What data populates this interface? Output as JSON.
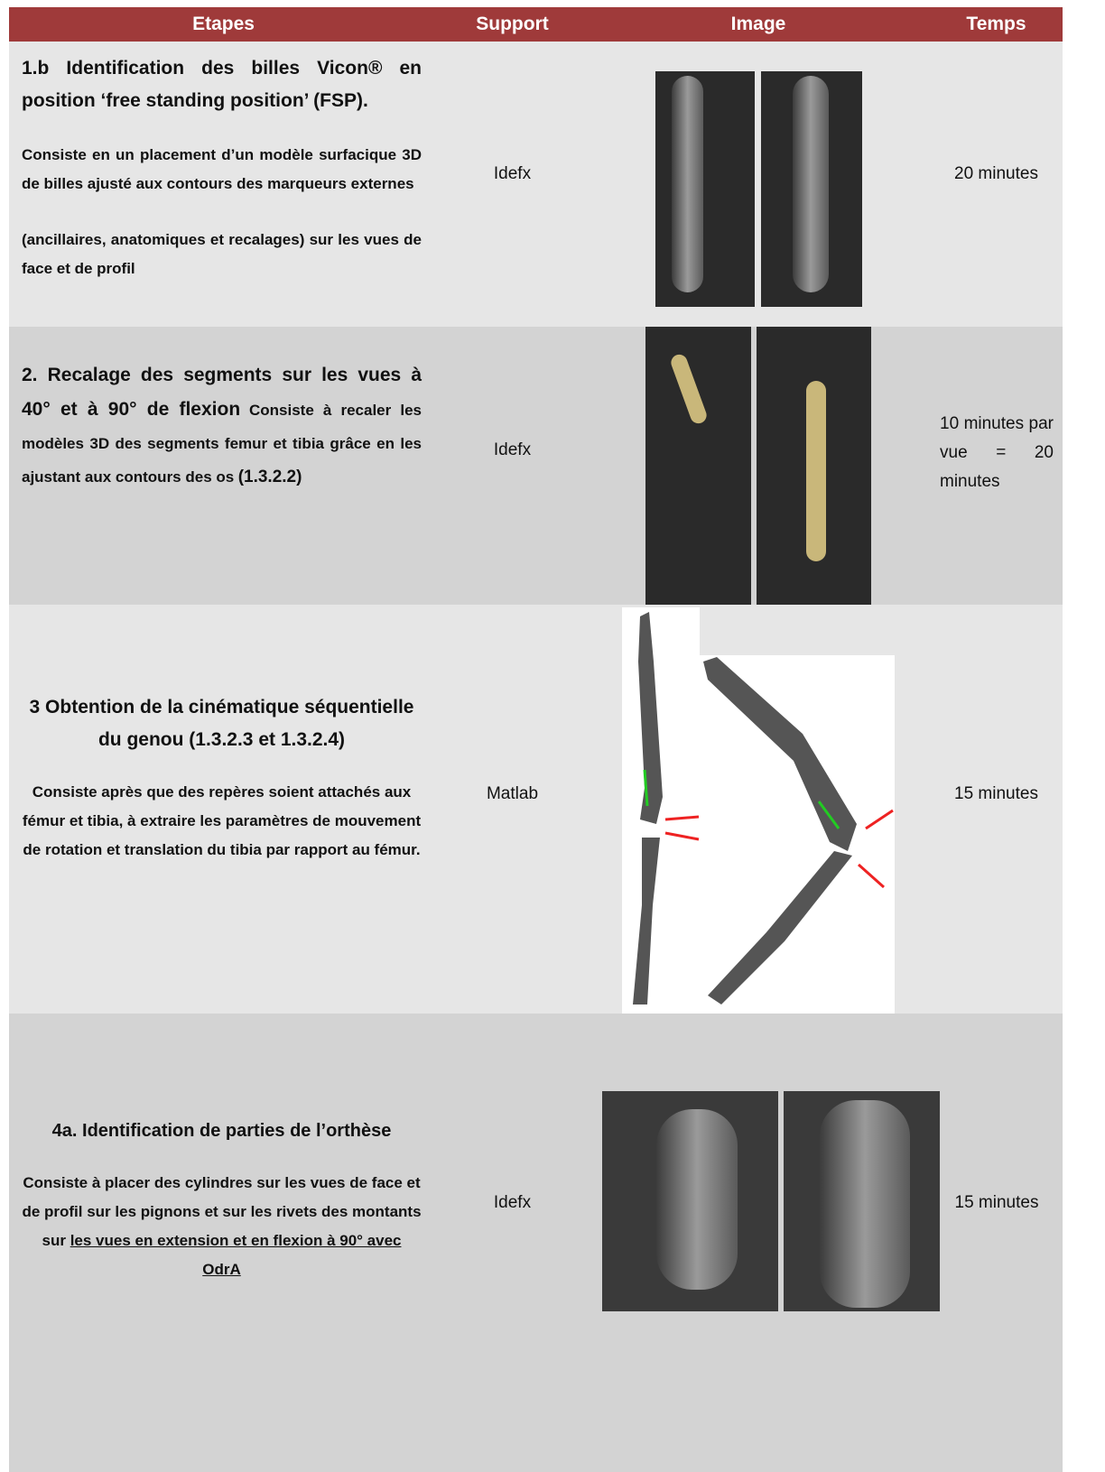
{
  "table": {
    "header": [
      "Etapes",
      "Support",
      "Image",
      "Temps"
    ],
    "rows": [
      {
        "title": "1.b Identification des billes Vicon® en position ‘free standing position’ (FSP).",
        "paragraphs": [
          "Consiste en un placement d’un modèle surfacique 3D de billes ajusté aux contours des marqueurs externes",
          "(ancillaires, anatomiques et recalages) sur les vues de face et de profil"
        ],
        "support": "Idefx",
        "temps": "20 minutes"
      },
      {
        "title": "2. Recalage des segments sur les vues à 40° et à 90° de flexion",
        "description": "Consiste à recaler les modèles 3D des segments femur et tibia grâce en les ajustant aux contours des os",
        "reference": "(1.3.2.2)",
        "support": "Idefx",
        "temps": "10 minutes par vue = 20 minutes"
      },
      {
        "title": "3 Obtention de la cinématique séquentielle du genou (1.3.2.3 et 1.3.2.4)",
        "paragraphs": [
          "Consiste après que des repères soient attachés aux fémur et tibia, à extraire les paramètres de mouvement de rotation et translation du tibia par rapport au fémur."
        ],
        "support": "Matlab",
        "temps": "15 minutes"
      },
      {
        "title": "4a. Identification de parties de l’orthèse",
        "description": "Consiste à placer des cylindres sur les vues de face et de profil sur les pignons et sur les rivets des montants sur ",
        "underlined": "les vues en extension et en flexion à 90° avec OdrA",
        "support": "Idefx",
        "temps": "15 minutes"
      }
    ]
  }
}
